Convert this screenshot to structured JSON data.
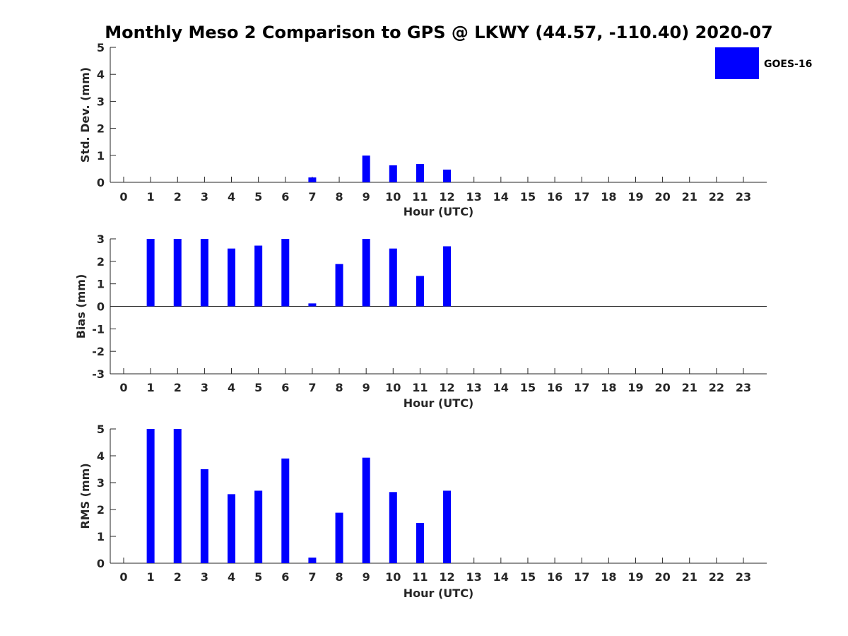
{
  "figure": {
    "title": "Monthly Meso 2 Comparison to GPS @ LKWY (44.57, -110.40) 2020-07",
    "bar_color": "#0000ff"
  },
  "legend": {
    "label": "GOES-16",
    "placement": "top-right"
  },
  "chart_data": [
    {
      "type": "bar",
      "categories": [
        0,
        1,
        2,
        3,
        4,
        5,
        6,
        7,
        8,
        9,
        10,
        11,
        12,
        13,
        14,
        15,
        16,
        17,
        18,
        19,
        20,
        21,
        22,
        23
      ],
      "series": [
        {
          "name": "GOES-16",
          "values": [
            null,
            null,
            null,
            null,
            null,
            null,
            null,
            0.18,
            null,
            0.99,
            0.63,
            0.68,
            0.47,
            null,
            null,
            null,
            null,
            null,
            null,
            null,
            null,
            null,
            null,
            null
          ]
        }
      ],
      "title": "",
      "xlabel": "Hour (UTC)",
      "ylabel": "Std. Dev. (mm)",
      "ylim": [
        0,
        5
      ],
      "yticks": [
        0,
        1,
        2,
        3,
        4,
        5
      ],
      "zero_line": false
    },
    {
      "type": "bar",
      "categories": [
        0,
        1,
        2,
        3,
        4,
        5,
        6,
        7,
        8,
        9,
        10,
        11,
        12,
        13,
        14,
        15,
        16,
        17,
        18,
        19,
        20,
        21,
        22,
        23
      ],
      "series": [
        {
          "name": "GOES-16",
          "values": [
            null,
            3.0,
            3.0,
            3.0,
            2.57,
            2.7,
            3.0,
            0.13,
            1.88,
            3.0,
            2.57,
            1.35,
            2.67,
            null,
            null,
            null,
            null,
            null,
            null,
            null,
            null,
            null,
            null,
            null
          ]
        }
      ],
      "title": "",
      "xlabel": "Hour (UTC)",
      "ylabel": "Bias (mm)",
      "ylim": [
        -3,
        3
      ],
      "yticks": [
        -3,
        -2,
        -1,
        0,
        1,
        2,
        3
      ],
      "zero_line": true
    },
    {
      "type": "bar",
      "categories": [
        0,
        1,
        2,
        3,
        4,
        5,
        6,
        7,
        8,
        9,
        10,
        11,
        12,
        13,
        14,
        15,
        16,
        17,
        18,
        19,
        20,
        21,
        22,
        23
      ],
      "series": [
        {
          "name": "GOES-16",
          "values": [
            null,
            5.0,
            5.0,
            3.5,
            2.57,
            2.7,
            3.9,
            0.21,
            1.88,
            3.93,
            2.65,
            1.5,
            2.7,
            null,
            null,
            null,
            null,
            null,
            null,
            null,
            null,
            null,
            null,
            null
          ]
        }
      ],
      "title": "",
      "xlabel": "Hour (UTC)",
      "ylabel": "RMS (mm)",
      "ylim": [
        0,
        5
      ],
      "yticks": [
        0,
        1,
        2,
        3,
        4,
        5
      ],
      "zero_line": false
    }
  ]
}
